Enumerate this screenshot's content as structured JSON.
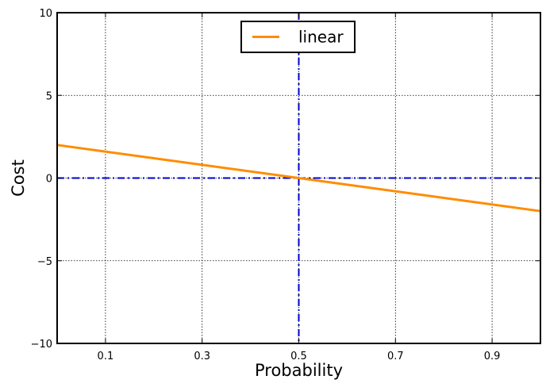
{
  "chart_data": {
    "type": "line",
    "title": "",
    "xlabel": "Probability",
    "ylabel": "Cost",
    "xlim": [
      0,
      1
    ],
    "ylim": [
      -10,
      10
    ],
    "xticks": [
      0.1,
      0.3,
      0.5,
      0.7,
      0.9
    ],
    "xtick_labels": [
      "0.1",
      "0.3",
      "0.5",
      "0.7",
      "0.9"
    ],
    "yticks": [
      -10,
      -5,
      0,
      5,
      10
    ],
    "ytick_labels": [
      "−10",
      "−5",
      "0",
      "5",
      "10"
    ],
    "grid": true,
    "legend_position": "top-center",
    "series": [
      {
        "name": "linear",
        "color": "#ff8c00",
        "x": [
          0,
          1
        ],
        "y": [
          2,
          -2
        ]
      }
    ],
    "reference_lines": [
      {
        "orientation": "horizontal",
        "value": 0,
        "style": "dash-dot",
        "color": "#0000cd"
      },
      {
        "orientation": "vertical",
        "value": 0.5,
        "style": "dash-dot",
        "color": "#0000cd"
      }
    ]
  }
}
